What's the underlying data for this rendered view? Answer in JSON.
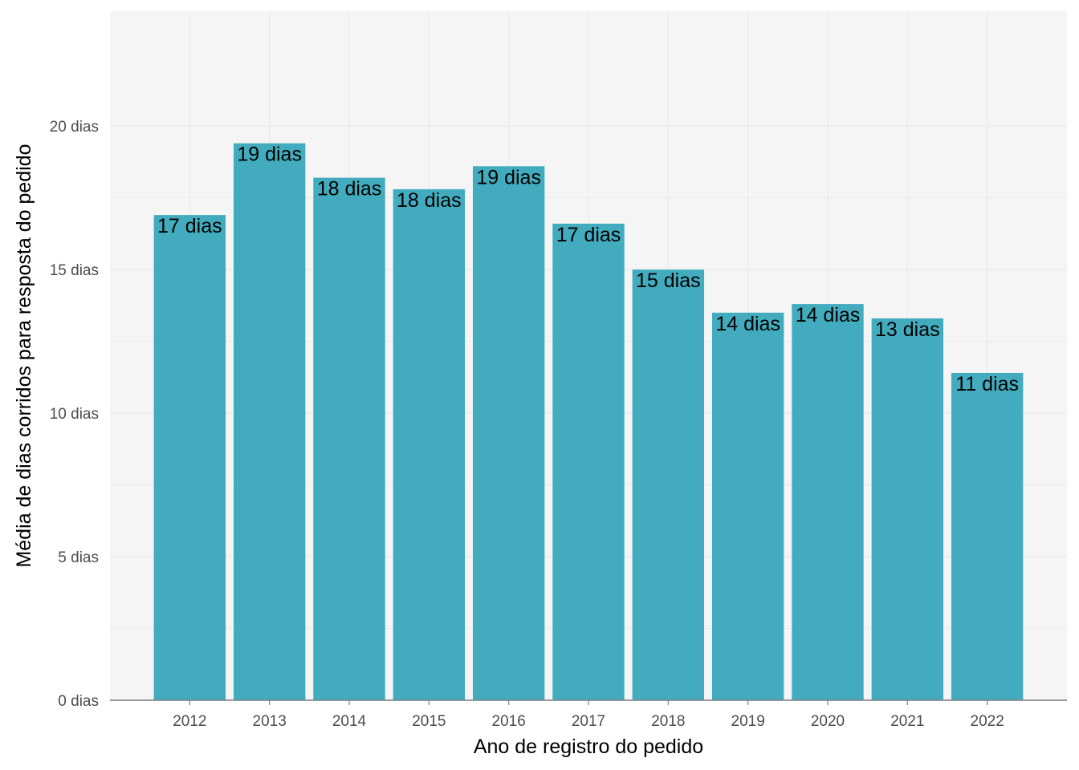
{
  "chart_data": {
    "type": "bar",
    "title": "",
    "xlabel": "Ano de registro do pedido",
    "ylabel": "Média de dias corridos para resposta do pedido",
    "categories": [
      "2012",
      "2013",
      "2014",
      "2015",
      "2016",
      "2017",
      "2018",
      "2019",
      "2020",
      "2021",
      "2022"
    ],
    "values": [
      16.9,
      19.4,
      18.2,
      17.8,
      18.6,
      16.6,
      15.0,
      13.5,
      13.8,
      13.3,
      11.4
    ],
    "data_labels": [
      "17 dias",
      "19 dias",
      "18 dias",
      "18 dias",
      "19 dias",
      "17 dias",
      "15 dias",
      "14 dias",
      "14 dias",
      "13 dias",
      "11 dias"
    ],
    "yticks": [
      0,
      5,
      10,
      15,
      20
    ],
    "ytick_labels": [
      "0 dias",
      "5 dias",
      "10 dias",
      "15 dias",
      "20 dias"
    ],
    "ylim": [
      0,
      24
    ],
    "grid": true,
    "legend": "none",
    "colors": {
      "bar": "#42acbe",
      "panel": "#f5f5f5",
      "grid": "#ebebeb",
      "axis": "#808080"
    }
  }
}
